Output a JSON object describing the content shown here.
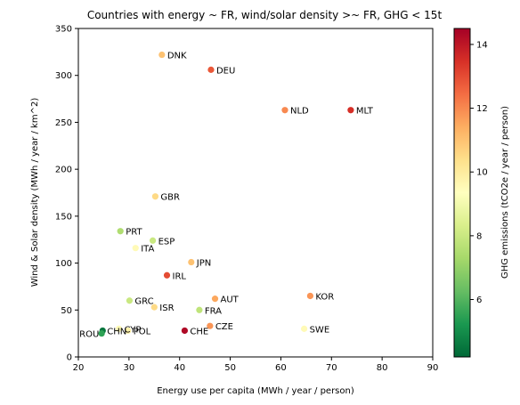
{
  "chart_data": {
    "type": "scatter",
    "title": "Countries with energy ~ FR, wind/solar density >~ FR, GHG < 15t",
    "xlabel": "Energy use per capita (MWh / year / person)",
    "ylabel": "Wind & Solar density (MWh / year / km^2)",
    "xlim": [
      20,
      90
    ],
    "ylim": [
      0,
      350
    ],
    "xticks": [
      20,
      30,
      40,
      50,
      60,
      70,
      80,
      90
    ],
    "yticks": [
      0,
      50,
      100,
      150,
      200,
      250,
      300,
      350
    ],
    "grid": false,
    "colorbar": {
      "label": "GHG emissions (tCO2e / year / person)",
      "range": [
        4.2,
        14.5
      ],
      "ticks": [
        6,
        8,
        10,
        12,
        14
      ],
      "colormap": [
        "#006837",
        "#1a9850",
        "#66bd63",
        "#a6d96a",
        "#d9ef8b",
        "#ffffbf",
        "#fee08b",
        "#fdae61",
        "#f46d43",
        "#d73027",
        "#a50026"
      ]
    },
    "points": [
      {
        "label": "DNK",
        "x": 36.5,
        "y": 322,
        "ghg": 11.0
      },
      {
        "label": "DEU",
        "x": 46.2,
        "y": 306,
        "ghg": 12.8
      },
      {
        "label": "NLD",
        "x": 60.8,
        "y": 263,
        "ghg": 12.0
      },
      {
        "label": "MLT",
        "x": 73.8,
        "y": 263,
        "ghg": 13.5
      },
      {
        "label": "GBR",
        "x": 35.2,
        "y": 171,
        "ghg": 10.5
      },
      {
        "label": "PRT",
        "x": 28.3,
        "y": 134,
        "ghg": 7.5
      },
      {
        "label": "ESP",
        "x": 34.7,
        "y": 124,
        "ghg": 8.0
      },
      {
        "label": "ITA",
        "x": 31.3,
        "y": 116,
        "ghg": 9.5
      },
      {
        "label": "JPN",
        "x": 42.3,
        "y": 101,
        "ghg": 11.0
      },
      {
        "label": "IRL",
        "x": 37.5,
        "y": 87,
        "ghg": 13.0
      },
      {
        "label": "AUT",
        "x": 47.0,
        "y": 62,
        "ghg": 11.5
      },
      {
        "label": "KOR",
        "x": 65.8,
        "y": 65,
        "ghg": 11.8
      },
      {
        "label": "GRC",
        "x": 30.1,
        "y": 60,
        "ghg": 8.0
      },
      {
        "label": "ISR",
        "x": 35.0,
        "y": 53,
        "ghg": 10.5
      },
      {
        "label": "FRA",
        "x": 43.9,
        "y": 50,
        "ghg": 7.8
      },
      {
        "label": "CZE",
        "x": 46.0,
        "y": 33,
        "ghg": 11.8
      },
      {
        "label": "SWE",
        "x": 64.6,
        "y": 30,
        "ghg": 9.5
      },
      {
        "label": "CYP",
        "x": 28.0,
        "y": 30,
        "ghg": 9.5
      },
      {
        "label": "POL",
        "x": 29.8,
        "y": 28,
        "ghg": 9.8
      },
      {
        "label": "CHN",
        "x": 24.8,
        "y": 28,
        "ghg": 4.5
      },
      {
        "label": "ROU",
        "x": 24.6,
        "y": 25,
        "ghg": 5.5
      },
      {
        "label": "CHE",
        "x": 41.0,
        "y": 28,
        "ghg": 14.3
      }
    ]
  }
}
